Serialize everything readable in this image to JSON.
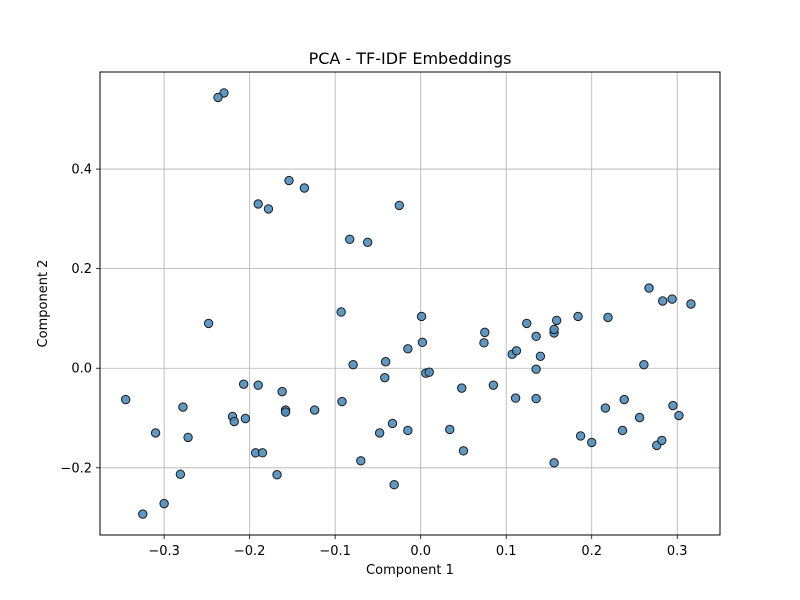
{
  "chart_data": {
    "type": "scatter",
    "title": "PCA - TF-IDF Embeddings",
    "xlabel": "Component 1",
    "ylabel": "Component 2",
    "xlim": [
      -0.375,
      0.35
    ],
    "ylim": [
      -0.335,
      0.595
    ],
    "xticks": [
      -0.3,
      -0.2,
      -0.1,
      0.0,
      0.1,
      0.2,
      0.3
    ],
    "xtick_labels": [
      "−0.3",
      "−0.2",
      "−0.1",
      "0.0",
      "0.1",
      "0.2",
      "0.3"
    ],
    "yticks": [
      -0.2,
      0.0,
      0.2,
      0.4
    ],
    "ytick_labels": [
      "−0.2",
      "0.0",
      "0.2",
      "0.4"
    ],
    "grid": true,
    "marker_color": "#4c8dbd",
    "edge_color": "#1a1a1a",
    "points": [
      {
        "x": -0.23,
        "y": 0.553
      },
      {
        "x": -0.237,
        "y": 0.544
      },
      {
        "x": -0.154,
        "y": 0.377
      },
      {
        "x": -0.136,
        "y": 0.362
      },
      {
        "x": -0.19,
        "y": 0.33
      },
      {
        "x": -0.178,
        "y": 0.32
      },
      {
        "x": -0.025,
        "y": 0.327
      },
      {
        "x": -0.083,
        "y": 0.259
      },
      {
        "x": -0.062,
        "y": 0.253
      },
      {
        "x": -0.093,
        "y": 0.113
      },
      {
        "x": -0.248,
        "y": 0.09
      },
      {
        "x": 0.001,
        "y": 0.104
      },
      {
        "x": -0.015,
        "y": 0.039
      },
      {
        "x": 0.002,
        "y": 0.052
      },
      {
        "x": -0.079,
        "y": 0.007
      },
      {
        "x": -0.041,
        "y": 0.013
      },
      {
        "x": -0.042,
        "y": -0.019
      },
      {
        "x": 0.006,
        "y": -0.01
      },
      {
        "x": 0.01,
        "y": -0.008
      },
      {
        "x": -0.207,
        "y": -0.032
      },
      {
        "x": -0.19,
        "y": -0.034
      },
      {
        "x": -0.162,
        "y": -0.047
      },
      {
        "x": -0.345,
        "y": -0.063
      },
      {
        "x": -0.278,
        "y": -0.078
      },
      {
        "x": -0.22,
        "y": -0.097
      },
      {
        "x": -0.218,
        "y": -0.107
      },
      {
        "x": -0.205,
        "y": -0.101
      },
      {
        "x": -0.158,
        "y": -0.084
      },
      {
        "x": -0.158,
        "y": -0.088
      },
      {
        "x": -0.124,
        "y": -0.084
      },
      {
        "x": -0.092,
        "y": -0.067
      },
      {
        "x": -0.31,
        "y": -0.13
      },
      {
        "x": -0.272,
        "y": -0.139
      },
      {
        "x": -0.193,
        "y": -0.17
      },
      {
        "x": -0.185,
        "y": -0.17
      },
      {
        "x": -0.281,
        "y": -0.213
      },
      {
        "x": -0.168,
        "y": -0.214
      },
      {
        "x": -0.3,
        "y": -0.272
      },
      {
        "x": -0.325,
        "y": -0.293
      },
      {
        "x": -0.07,
        "y": -0.186
      },
      {
        "x": -0.048,
        "y": -0.13
      },
      {
        "x": -0.033,
        "y": -0.111
      },
      {
        "x": -0.015,
        "y": -0.125
      },
      {
        "x": -0.031,
        "y": -0.234
      },
      {
        "x": 0.034,
        "y": -0.123
      },
      {
        "x": 0.048,
        "y": -0.04
      },
      {
        "x": 0.05,
        "y": -0.166
      },
      {
        "x": 0.074,
        "y": 0.051
      },
      {
        "x": 0.075,
        "y": 0.072
      },
      {
        "x": 0.085,
        "y": -0.034
      },
      {
        "x": 0.107,
        "y": 0.028
      },
      {
        "x": 0.112,
        "y": 0.035
      },
      {
        "x": 0.111,
        "y": -0.06
      },
      {
        "x": 0.124,
        "y": 0.09
      },
      {
        "x": 0.135,
        "y": 0.064
      },
      {
        "x": 0.135,
        "y": -0.002
      },
      {
        "x": 0.14,
        "y": 0.024
      },
      {
        "x": 0.135,
        "y": -0.061
      },
      {
        "x": 0.156,
        "y": 0.071
      },
      {
        "x": 0.156,
        "y": 0.078
      },
      {
        "x": 0.159,
        "y": 0.096
      },
      {
        "x": 0.184,
        "y": 0.104
      },
      {
        "x": 0.156,
        "y": -0.19
      },
      {
        "x": 0.187,
        "y": -0.136
      },
      {
        "x": 0.2,
        "y": -0.149
      },
      {
        "x": 0.216,
        "y": -0.08
      },
      {
        "x": 0.219,
        "y": 0.102
      },
      {
        "x": 0.236,
        "y": -0.125
      },
      {
        "x": 0.238,
        "y": -0.063
      },
      {
        "x": 0.256,
        "y": -0.099
      },
      {
        "x": 0.261,
        "y": 0.007
      },
      {
        "x": 0.267,
        "y": 0.161
      },
      {
        "x": 0.276,
        "y": -0.155
      },
      {
        "x": 0.282,
        "y": -0.145
      },
      {
        "x": 0.283,
        "y": 0.135
      },
      {
        "x": 0.294,
        "y": 0.139
      },
      {
        "x": 0.295,
        "y": -0.075
      },
      {
        "x": 0.302,
        "y": -0.095
      },
      {
        "x": 0.316,
        "y": 0.129
      }
    ]
  }
}
